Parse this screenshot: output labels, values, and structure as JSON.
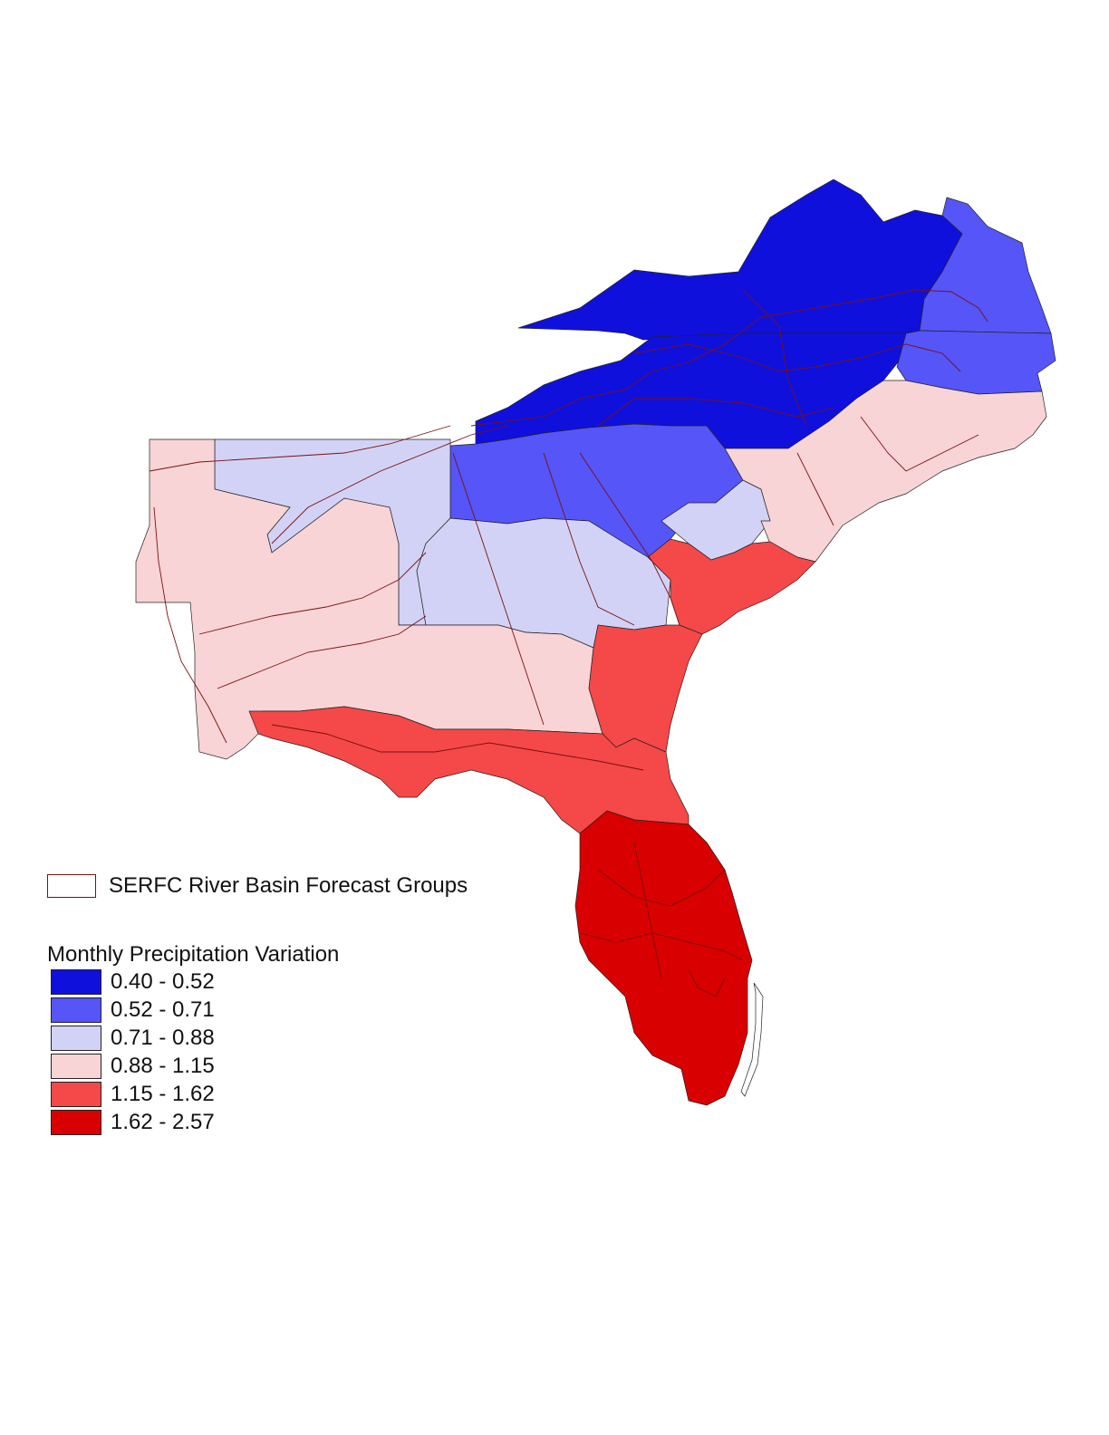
{
  "legend": {
    "basin_label": "SERFC River Basin Forecast Groups",
    "title": "Monthly Precipitation Variation",
    "classes": [
      {
        "label": "0.40 - 0.52",
        "color": "#1010dd"
      },
      {
        "label": "0.52 - 0.71",
        "color": "#5555f8"
      },
      {
        "label": "0.71 - 0.88",
        "color": "#d2d2f6"
      },
      {
        "label": "0.88 - 1.15",
        "color": "#f8d4d6"
      },
      {
        "label": "1.15 - 1.62",
        "color": "#f54848"
      },
      {
        "label": "1.62 - 2.57",
        "color": "#d80000"
      }
    ]
  },
  "basin_outline_color": "#7a1010"
}
